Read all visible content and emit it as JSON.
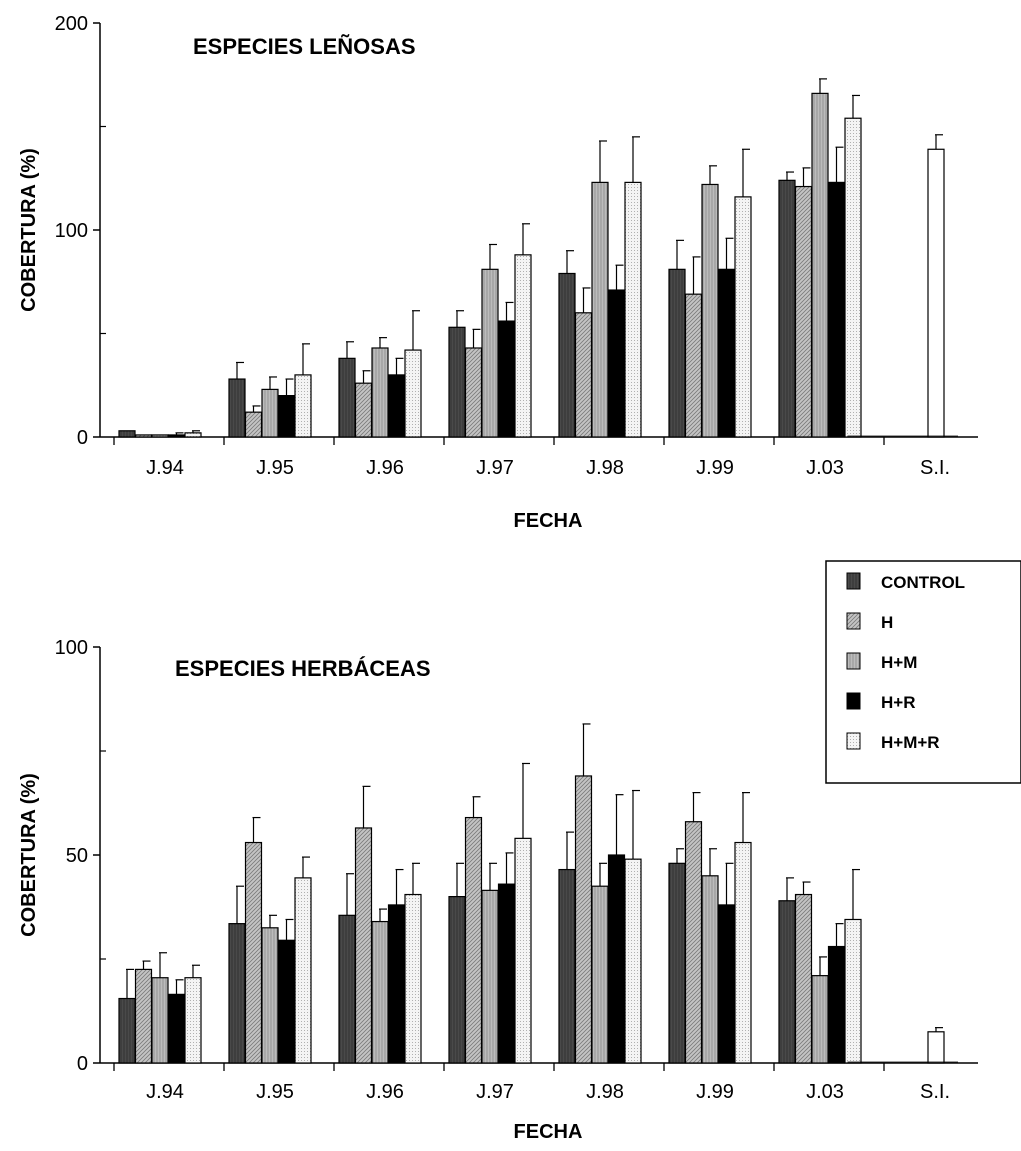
{
  "legend": {
    "entries": [
      "CONTROL",
      "H",
      "H+M",
      "H+R",
      "H+M+R"
    ],
    "placement": "right, between panels"
  },
  "series_styles": {
    "CONTROL": {
      "fill": "#4a4a4a",
      "pattern": "dark"
    },
    "H": {
      "fill": "#bdbdbd",
      "pattern": "diagonal"
    },
    "H+M": {
      "fill": "#b5b5b5",
      "pattern": "vertical"
    },
    "H+R": {
      "fill": "#000000",
      "pattern": "solid"
    },
    "H+M+R": {
      "fill": "#f2f2f2",
      "pattern": "dotted"
    },
    "S.I.": {
      "fill": "#ffffff",
      "pattern": "white"
    }
  },
  "chart_data": [
    {
      "type": "bar",
      "title": "ESPECIES LEÑOSAS",
      "xlabel": "FECHA",
      "ylabel": "COBERTURA (%)",
      "ylim": [
        0,
        200
      ],
      "yticks": [
        0,
        100,
        200
      ],
      "categories": [
        "J.94",
        "J.95",
        "J.96",
        "J.97",
        "J.98",
        "J.99",
        "J.03",
        "S.I."
      ],
      "series": [
        {
          "name": "CONTROL",
          "values": [
            3,
            28,
            38,
            53,
            79,
            81,
            124,
            null
          ],
          "errors": [
            0,
            8,
            8,
            8,
            11,
            14,
            4,
            null
          ]
        },
        {
          "name": "H",
          "values": [
            1,
            12,
            26,
            43,
            60,
            69,
            121,
            null
          ],
          "errors": [
            0,
            3,
            6,
            9,
            12,
            18,
            9,
            null
          ]
        },
        {
          "name": "H+M",
          "values": [
            1,
            23,
            43,
            81,
            123,
            122,
            166,
            null
          ],
          "errors": [
            0,
            6,
            5,
            12,
            20,
            9,
            7,
            null
          ]
        },
        {
          "name": "H+R",
          "values": [
            1,
            20,
            30,
            56,
            71,
            81,
            123,
            null
          ],
          "errors": [
            1,
            8,
            8,
            9,
            12,
            15,
            17,
            null
          ]
        },
        {
          "name": "H+M+R",
          "values": [
            2,
            30,
            42,
            88,
            123,
            116,
            154,
            null
          ],
          "errors": [
            1,
            15,
            19,
            15,
            22,
            23,
            11,
            null
          ]
        },
        {
          "name": "S.I.",
          "values": [
            null,
            null,
            null,
            null,
            null,
            null,
            null,
            139
          ],
          "errors": [
            null,
            null,
            null,
            null,
            null,
            null,
            null,
            7
          ]
        }
      ],
      "grid": false,
      "error_bars": "upper"
    },
    {
      "type": "bar",
      "title": "ESPECIES HERBÁCEAS",
      "xlabel": "FECHA",
      "ylabel": "COBERTURA (%)",
      "ylim": [
        0,
        100
      ],
      "yticks": [
        0,
        50,
        100
      ],
      "categories": [
        "J.94",
        "J.95",
        "J.96",
        "J.97",
        "J.98",
        "J.99",
        "J.03",
        "S.I."
      ],
      "series": [
        {
          "name": "CONTROL",
          "values": [
            15.5,
            33.5,
            35.5,
            40,
            46.5,
            48,
            39,
            null
          ],
          "errors": [
            7,
            9,
            10,
            8,
            9,
            3.5,
            5.5,
            null
          ]
        },
        {
          "name": "H",
          "values": [
            22.5,
            53,
            56.5,
            59,
            69,
            58,
            40.5,
            null
          ],
          "errors": [
            2,
            6,
            10,
            5,
            12.5,
            7,
            3,
            null
          ]
        },
        {
          "name": "H+M",
          "values": [
            20.5,
            32.5,
            34,
            41.5,
            42.5,
            45,
            21,
            null
          ],
          "errors": [
            6,
            3,
            3,
            6.5,
            5.5,
            6.5,
            4.5,
            null
          ]
        },
        {
          "name": "H+R",
          "values": [
            16.5,
            29.5,
            38,
            43,
            50,
            38,
            28,
            null
          ],
          "errors": [
            3.5,
            5,
            8.5,
            7.5,
            14.5,
            10,
            5.5,
            null
          ]
        },
        {
          "name": "H+M+R",
          "values": [
            20.5,
            44.5,
            40.5,
            54,
            49,
            53,
            34.5,
            null
          ],
          "errors": [
            3,
            5,
            7.5,
            18,
            16.5,
            12,
            12,
            null
          ]
        },
        {
          "name": "S.I.",
          "values": [
            null,
            null,
            null,
            null,
            null,
            null,
            null,
            7.5
          ],
          "errors": [
            null,
            null,
            null,
            null,
            null,
            null,
            null,
            1
          ]
        }
      ],
      "grid": false,
      "error_bars": "upper"
    }
  ]
}
